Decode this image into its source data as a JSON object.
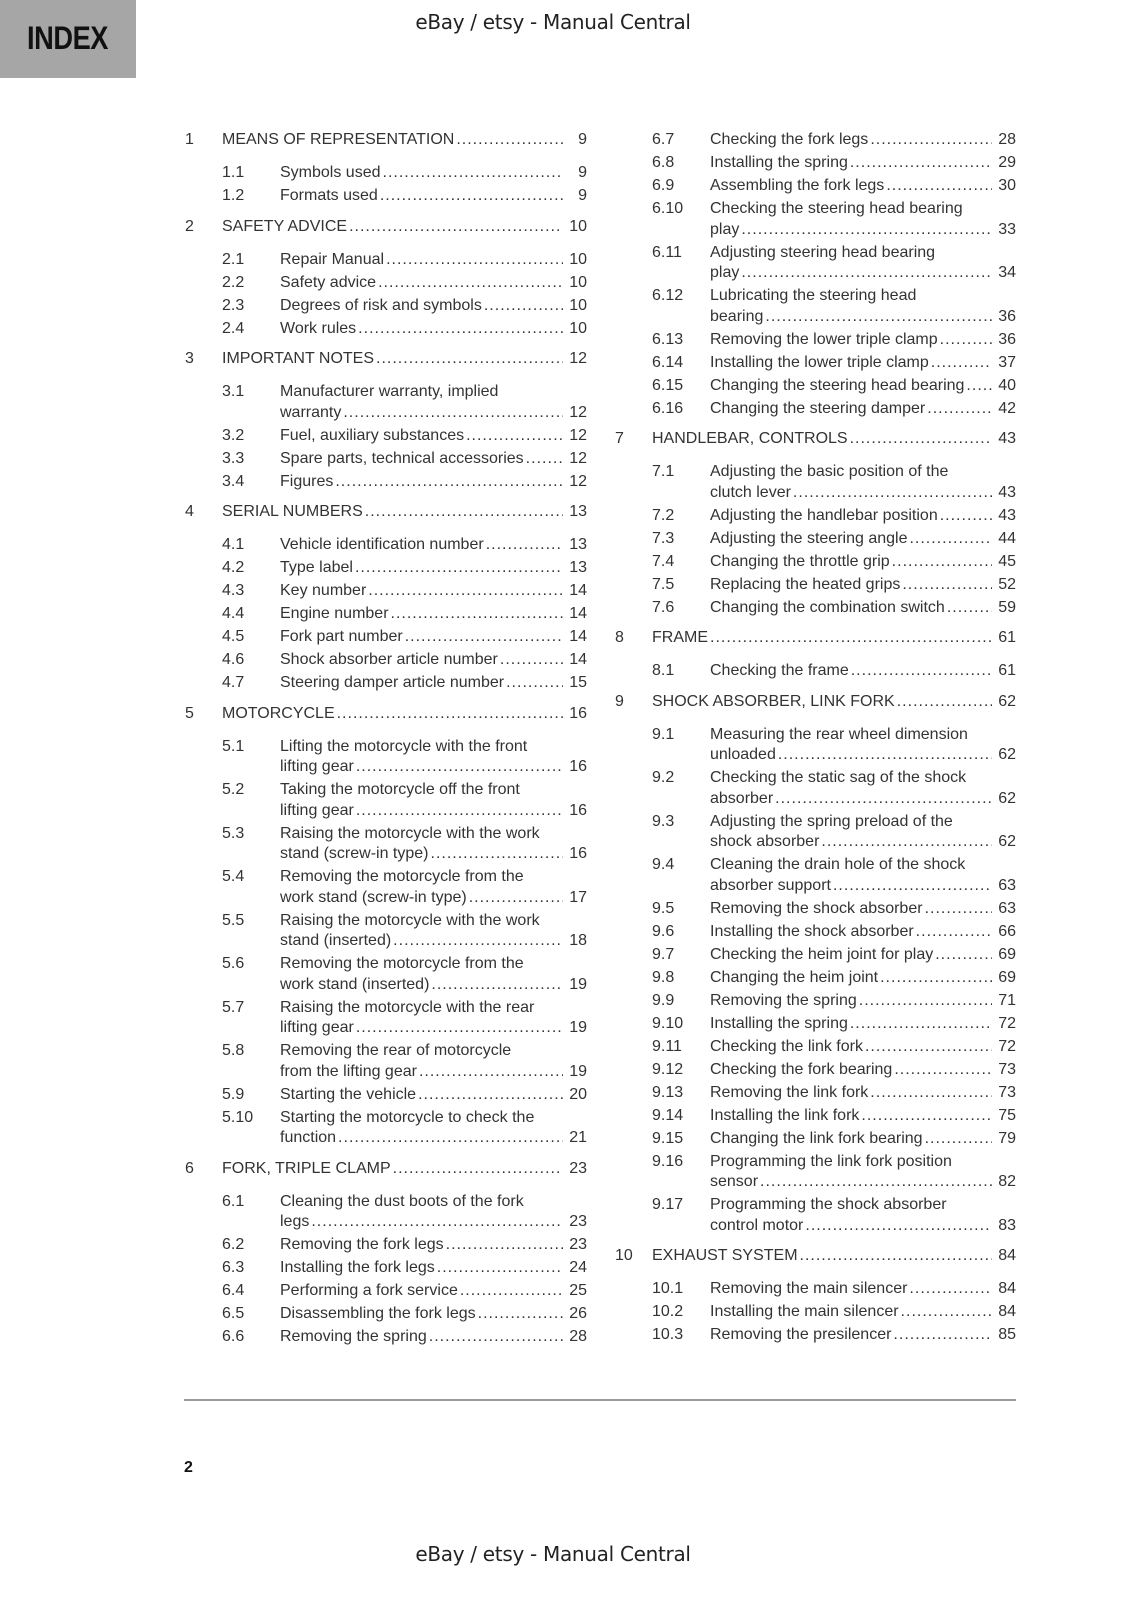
{
  "header": {
    "index_label": "INDEX",
    "watermark": "eBay / etsy - Manual Central"
  },
  "footer": {
    "page_number": "2",
    "watermark": "eBay / etsy - Manual Central"
  },
  "toc": {
    "left": [
      {
        "type": "chapter",
        "num": "1",
        "lines": [
          "MEANS OF REPRESENTATION"
        ],
        "page": "9"
      },
      {
        "type": "section",
        "num": "1.1",
        "lines": [
          "Symbols used"
        ],
        "page": "9"
      },
      {
        "type": "section",
        "num": "1.2",
        "lines": [
          "Formats used"
        ],
        "page": "9"
      },
      {
        "type": "chapter",
        "num": "2",
        "lines": [
          "SAFETY ADVICE"
        ],
        "page": "10"
      },
      {
        "type": "section",
        "num": "2.1",
        "lines": [
          "Repair Manual"
        ],
        "page": "10"
      },
      {
        "type": "section",
        "num": "2.2",
        "lines": [
          "Safety advice"
        ],
        "page": "10"
      },
      {
        "type": "section",
        "num": "2.3",
        "lines": [
          "Degrees of risk and symbols"
        ],
        "page": "10"
      },
      {
        "type": "section",
        "num": "2.4",
        "lines": [
          "Work rules"
        ],
        "page": "10"
      },
      {
        "type": "chapter",
        "num": "3",
        "lines": [
          "IMPORTANT NOTES"
        ],
        "page": "12"
      },
      {
        "type": "section",
        "num": "3.1",
        "lines": [
          "Manufacturer warranty, implied",
          "warranty"
        ],
        "page": "12"
      },
      {
        "type": "section",
        "num": "3.2",
        "lines": [
          "Fuel, auxiliary substances"
        ],
        "page": "12"
      },
      {
        "type": "section",
        "num": "3.3",
        "lines": [
          "Spare parts, technical accessories"
        ],
        "page": "12"
      },
      {
        "type": "section",
        "num": "3.4",
        "lines": [
          "Figures"
        ],
        "page": "12"
      },
      {
        "type": "chapter",
        "num": "4",
        "lines": [
          "SERIAL NUMBERS"
        ],
        "page": "13"
      },
      {
        "type": "section",
        "num": "4.1",
        "lines": [
          "Vehicle identification number"
        ],
        "page": "13"
      },
      {
        "type": "section",
        "num": "4.2",
        "lines": [
          "Type label"
        ],
        "page": "13"
      },
      {
        "type": "section",
        "num": "4.3",
        "lines": [
          "Key number"
        ],
        "page": "14"
      },
      {
        "type": "section",
        "num": "4.4",
        "lines": [
          "Engine number"
        ],
        "page": "14"
      },
      {
        "type": "section",
        "num": "4.5",
        "lines": [
          "Fork part number"
        ],
        "page": "14"
      },
      {
        "type": "section",
        "num": "4.6",
        "lines": [
          "Shock absorber article number"
        ],
        "page": "14"
      },
      {
        "type": "section",
        "num": "4.7",
        "lines": [
          "Steering damper article number"
        ],
        "page": "15"
      },
      {
        "type": "chapter",
        "num": "5",
        "lines": [
          "MOTORCYCLE"
        ],
        "page": "16"
      },
      {
        "type": "section",
        "num": "5.1",
        "lines": [
          "Lifting the motorcycle with the front",
          "lifting gear"
        ],
        "page": "16"
      },
      {
        "type": "section",
        "num": "5.2",
        "lines": [
          "Taking the motorcycle off the front",
          "lifting gear"
        ],
        "page": "16"
      },
      {
        "type": "section",
        "num": "5.3",
        "lines": [
          "Raising the motorcycle with the work",
          "stand (screw-in type)"
        ],
        "page": "16"
      },
      {
        "type": "section",
        "num": "5.4",
        "lines": [
          "Removing the motorcycle from the",
          "work stand (screw-in type)"
        ],
        "page": "17"
      },
      {
        "type": "section",
        "num": "5.5",
        "lines": [
          "Raising the motorcycle with the work",
          "stand (inserted)"
        ],
        "page": "18"
      },
      {
        "type": "section",
        "num": "5.6",
        "lines": [
          "Removing the motorcycle from the",
          "work stand (inserted)"
        ],
        "page": "19"
      },
      {
        "type": "section",
        "num": "5.7",
        "lines": [
          "Raising the motorcycle with the rear",
          "lifting gear"
        ],
        "page": "19"
      },
      {
        "type": "section",
        "num": "5.8",
        "lines": [
          "Removing the rear of motorcycle",
          "from the lifting gear"
        ],
        "page": "19"
      },
      {
        "type": "section",
        "num": "5.9",
        "lines": [
          "Starting the vehicle"
        ],
        "page": "20"
      },
      {
        "type": "section",
        "num": "5.10",
        "lines": [
          "Starting the motorcycle to check the",
          "function"
        ],
        "page": "21"
      },
      {
        "type": "chapter",
        "num": "6",
        "lines": [
          "FORK, TRIPLE CLAMP"
        ],
        "page": "23"
      },
      {
        "type": "section",
        "num": "6.1",
        "lines": [
          "Cleaning the dust boots of the fork",
          "legs"
        ],
        "page": "23"
      },
      {
        "type": "section",
        "num": "6.2",
        "lines": [
          "Removing the fork legs"
        ],
        "page": "23"
      },
      {
        "type": "section",
        "num": "6.3",
        "lines": [
          "Installing the fork legs"
        ],
        "page": "24"
      },
      {
        "type": "section",
        "num": "6.4",
        "lines": [
          "Performing a fork service"
        ],
        "page": "25"
      },
      {
        "type": "section",
        "num": "6.5",
        "lines": [
          "Disassembling the fork legs"
        ],
        "page": "26"
      },
      {
        "type": "section",
        "num": "6.6",
        "lines": [
          "Removing the spring"
        ],
        "page": "28"
      }
    ],
    "right": [
      {
        "type": "section",
        "num": "6.7",
        "lines": [
          "Checking the fork legs"
        ],
        "page": "28"
      },
      {
        "type": "section",
        "num": "6.8",
        "lines": [
          "Installing the spring"
        ],
        "page": "29"
      },
      {
        "type": "section",
        "num": "6.9",
        "lines": [
          "Assembling the fork legs"
        ],
        "page": "30"
      },
      {
        "type": "section",
        "num": "6.10",
        "lines": [
          "Checking the steering head bearing",
          "play"
        ],
        "page": "33"
      },
      {
        "type": "section",
        "num": "6.11",
        "lines": [
          "Adjusting steering head bearing",
          "play"
        ],
        "page": "34"
      },
      {
        "type": "section",
        "num": "6.12",
        "lines": [
          "Lubricating the steering head",
          "bearing"
        ],
        "page": "36"
      },
      {
        "type": "section",
        "num": "6.13",
        "lines": [
          "Removing the lower triple clamp"
        ],
        "page": "36"
      },
      {
        "type": "section",
        "num": "6.14",
        "lines": [
          "Installing the lower triple clamp"
        ],
        "page": "37"
      },
      {
        "type": "section",
        "num": "6.15",
        "lines": [
          "Changing the steering head bearing"
        ],
        "page": "40"
      },
      {
        "type": "section",
        "num": "6.16",
        "lines": [
          "Changing the steering damper"
        ],
        "page": "42"
      },
      {
        "type": "chapter",
        "num": "7",
        "lines": [
          "HANDLEBAR, CONTROLS"
        ],
        "page": "43"
      },
      {
        "type": "section",
        "num": "7.1",
        "lines": [
          "Adjusting the basic position of the",
          "clutch lever"
        ],
        "page": "43"
      },
      {
        "type": "section",
        "num": "7.2",
        "lines": [
          "Adjusting the handlebar position"
        ],
        "page": "43"
      },
      {
        "type": "section",
        "num": "7.3",
        "lines": [
          "Adjusting the steering angle"
        ],
        "page": "44"
      },
      {
        "type": "section",
        "num": "7.4",
        "lines": [
          "Changing the throttle grip"
        ],
        "page": "45"
      },
      {
        "type": "section",
        "num": "7.5",
        "lines": [
          "Replacing the heated grips"
        ],
        "page": "52"
      },
      {
        "type": "section",
        "num": "7.6",
        "lines": [
          "Changing the combination switch"
        ],
        "page": "59"
      },
      {
        "type": "chapter",
        "num": "8",
        "lines": [
          "FRAME"
        ],
        "page": "61"
      },
      {
        "type": "section",
        "num": "8.1",
        "lines": [
          "Checking the frame"
        ],
        "page": "61"
      },
      {
        "type": "chapter",
        "num": "9",
        "lines": [
          "SHOCK ABSORBER, LINK FORK"
        ],
        "page": "62"
      },
      {
        "type": "section",
        "num": "9.1",
        "lines": [
          "Measuring the rear wheel dimension",
          "unloaded"
        ],
        "page": "62"
      },
      {
        "type": "section",
        "num": "9.2",
        "lines": [
          "Checking the static sag of the shock",
          "absorber"
        ],
        "page": "62"
      },
      {
        "type": "section",
        "num": "9.3",
        "lines": [
          "Adjusting the spring preload of the",
          "shock absorber"
        ],
        "page": "62"
      },
      {
        "type": "section",
        "num": "9.4",
        "lines": [
          "Cleaning the drain hole of the shock",
          "absorber support"
        ],
        "page": "63"
      },
      {
        "type": "section",
        "num": "9.5",
        "lines": [
          "Removing the shock absorber"
        ],
        "page": "63"
      },
      {
        "type": "section",
        "num": "9.6",
        "lines": [
          "Installing the shock absorber"
        ],
        "page": "66"
      },
      {
        "type": "section",
        "num": "9.7",
        "lines": [
          "Checking the heim joint for play"
        ],
        "page": "69"
      },
      {
        "type": "section",
        "num": "9.8",
        "lines": [
          "Changing the heim joint"
        ],
        "page": "69"
      },
      {
        "type": "section",
        "num": "9.9",
        "lines": [
          "Removing the spring"
        ],
        "page": "71"
      },
      {
        "type": "section",
        "num": "9.10",
        "lines": [
          "Installing the spring"
        ],
        "page": "72"
      },
      {
        "type": "section",
        "num": "9.11",
        "lines": [
          "Checking the link fork"
        ],
        "page": "72"
      },
      {
        "type": "section",
        "num": "9.12",
        "lines": [
          "Checking the fork bearing"
        ],
        "page": "73"
      },
      {
        "type": "section",
        "num": "9.13",
        "lines": [
          "Removing the link fork"
        ],
        "page": "73"
      },
      {
        "type": "section",
        "num": "9.14",
        "lines": [
          "Installing the link fork"
        ],
        "page": "75"
      },
      {
        "type": "section",
        "num": "9.15",
        "lines": [
          "Changing the link fork bearing"
        ],
        "page": "79"
      },
      {
        "type": "section",
        "num": "9.16",
        "lines": [
          "Programming the link fork position",
          "sensor"
        ],
        "page": "82"
      },
      {
        "type": "section",
        "num": "9.17",
        "lines": [
          "Programming the shock absorber",
          "control motor"
        ],
        "page": "83"
      },
      {
        "type": "chapter",
        "num": "10",
        "lines": [
          "EXHAUST SYSTEM"
        ],
        "page": "84"
      },
      {
        "type": "section",
        "num": "10.1",
        "lines": [
          "Removing the main silencer"
        ],
        "page": "84"
      },
      {
        "type": "section",
        "num": "10.2",
        "lines": [
          "Installing the main silencer"
        ],
        "page": "84"
      },
      {
        "type": "section",
        "num": "10.3",
        "lines": [
          "Removing the presilencer"
        ],
        "page": "85"
      }
    ]
  }
}
